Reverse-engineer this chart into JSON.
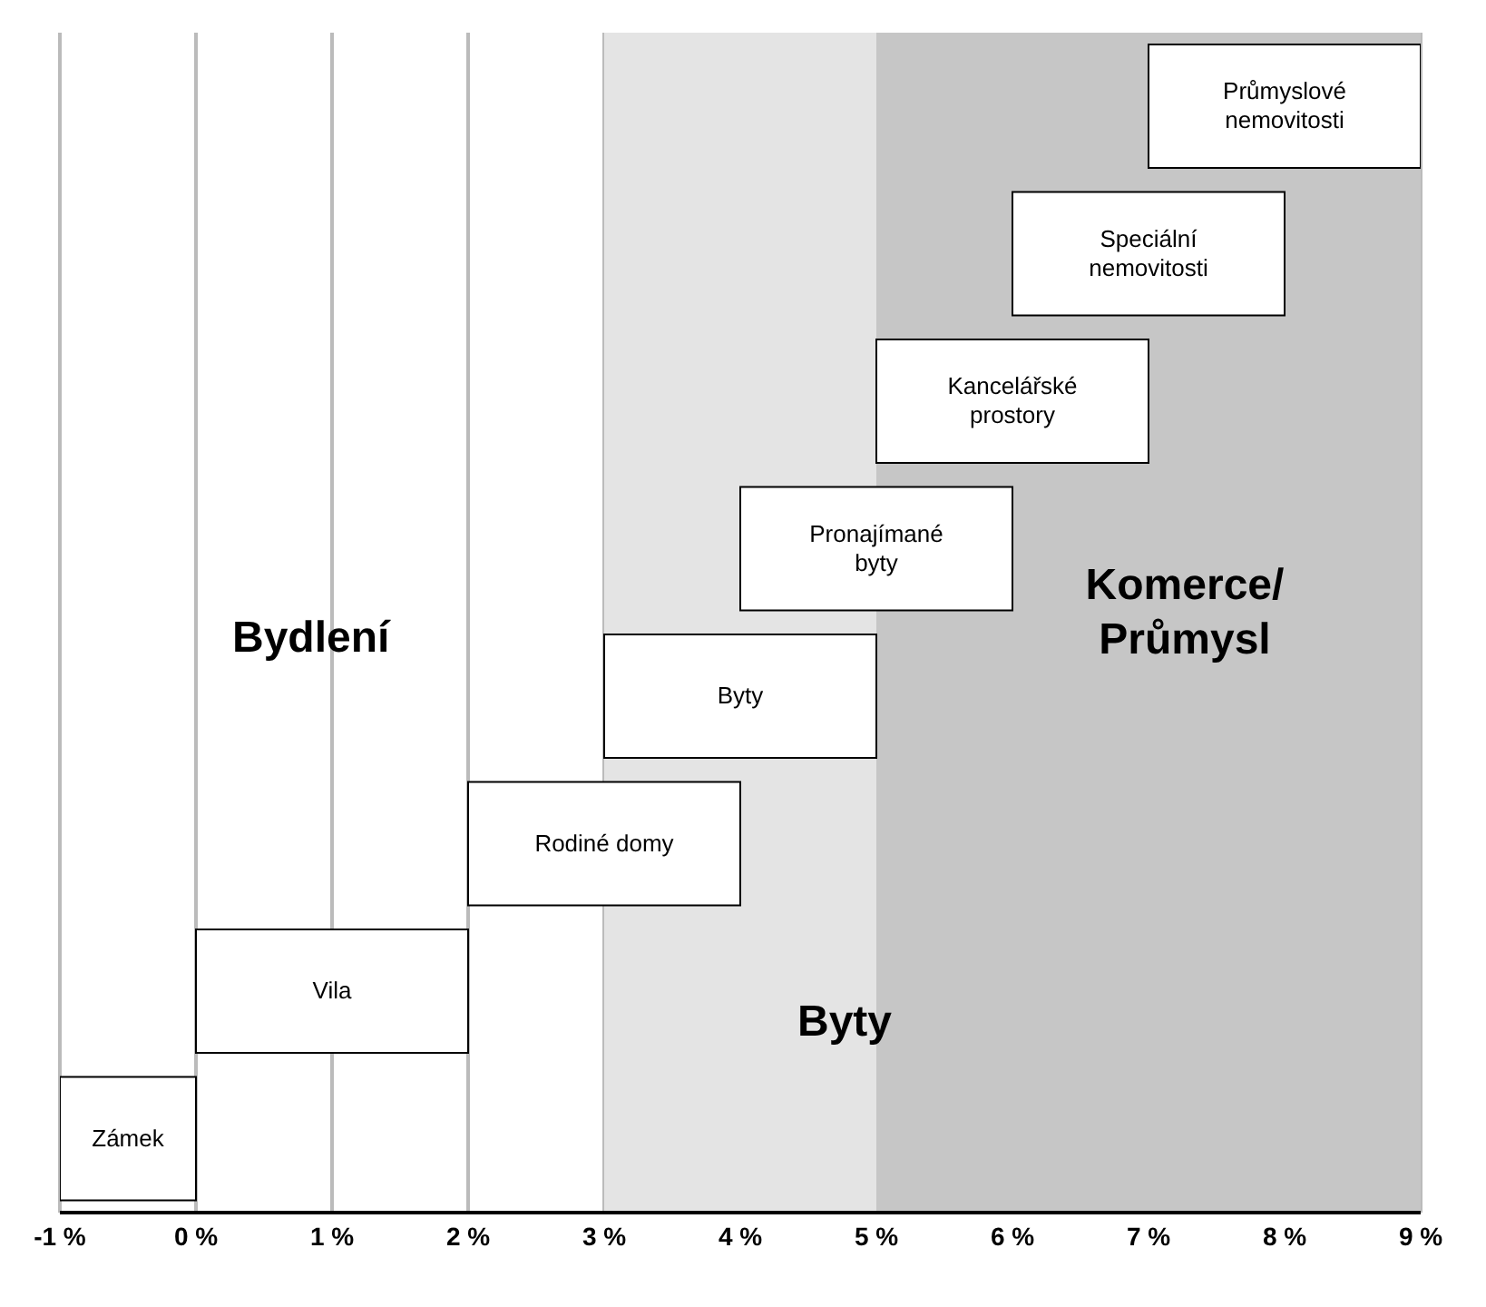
{
  "chart_data": {
    "type": "bar",
    "orientation": "horizontal",
    "categories": [
      "Průmyslové nemovitosti",
      "Speciální nemovitosti",
      "Kancelářské prostory",
      "Pronajímané byty",
      "Byty",
      "Rodiné domy",
      "Vila",
      "Zámek"
    ],
    "base": [
      7,
      6,
      5,
      4,
      3,
      2,
      0,
      -1
    ],
    "values": [
      2,
      2,
      2,
      2,
      2,
      2,
      2,
      1
    ],
    "color": "#ffffff",
    "xlim": [
      -1,
      9
    ],
    "xticks": [
      {
        "value": -1,
        "label": "-1 %"
      },
      {
        "value": 0,
        "label": "0 %"
      },
      {
        "value": 1,
        "label": "1 %"
      },
      {
        "value": 2,
        "label": "2 %"
      },
      {
        "value": 3,
        "label": "3 %"
      },
      {
        "value": 4,
        "label": "4 %"
      },
      {
        "value": 5,
        "label": "5 %"
      },
      {
        "value": 6,
        "label": "6 %"
      },
      {
        "value": 7,
        "label": "7 %"
      },
      {
        "value": 8,
        "label": "8 %"
      },
      {
        "value": 9,
        "label": "9 %"
      }
    ],
    "grid": "x",
    "bands": [
      {
        "axis": "x",
        "from": 3,
        "to": 6,
        "label": "Byty",
        "color": "#e4e4e4"
      },
      {
        "axis": "x",
        "from": 5,
        "to": 9,
        "label": "Komerce/ Průmysl",
        "color": "#c6c6c6"
      }
    ],
    "annotations": [
      "Bydlení"
    ]
  }
}
